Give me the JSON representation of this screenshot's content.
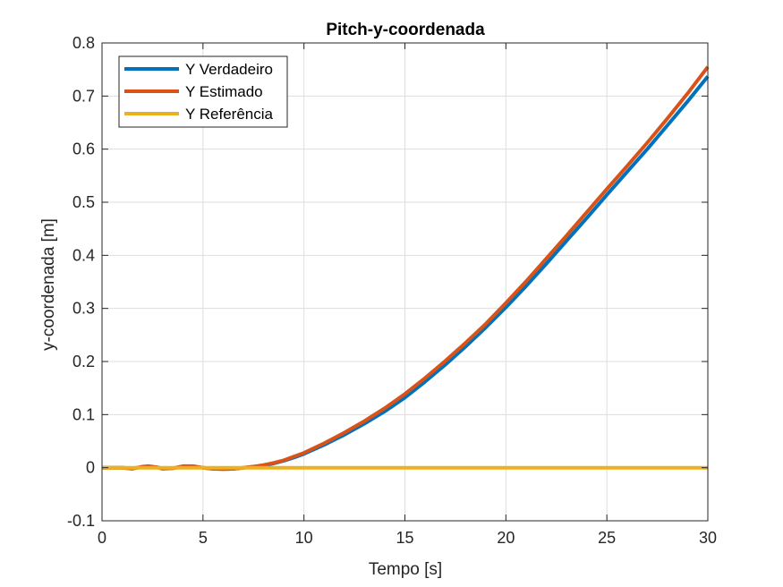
{
  "chart_data": {
    "type": "line",
    "title": "Pitch-y-coordenada",
    "xlabel": "Tempo [s]",
    "ylabel": "y-coordenada [m]",
    "xlim": [
      0,
      30
    ],
    "ylim": [
      -0.1,
      0.8
    ],
    "xticks": [
      0,
      5,
      10,
      15,
      20,
      25,
      30
    ],
    "xtick_labels": [
      "0",
      "5",
      "10",
      "15",
      "20",
      "25",
      "30"
    ],
    "yticks": [
      -0.1,
      0,
      0.1,
      0.2,
      0.3,
      0.4,
      0.5,
      0.6,
      0.7,
      0.8
    ],
    "ytick_labels": [
      "-0.1",
      "0",
      "0.1",
      "0.2",
      "0.3",
      "0.4",
      "0.5",
      "0.6",
      "0.7",
      "0.8"
    ],
    "grid": true,
    "legend_position": "top-left",
    "series": [
      {
        "name": "Y Verdadeiro",
        "color": "#0072BD",
        "x": [
          0,
          1,
          1.5,
          2,
          2.3,
          2.7,
          3,
          3.5,
          4,
          4.5,
          5,
          5.5,
          6,
          6.5,
          7,
          7.5,
          8,
          8.5,
          9,
          9.5,
          10,
          11,
          12,
          13,
          14,
          15,
          16,
          17,
          18,
          19,
          20,
          21,
          22,
          23,
          24,
          25,
          26,
          27,
          28,
          29,
          30
        ],
        "y": [
          0,
          0,
          -0.001,
          0.001,
          0.002,
          0.001,
          -0.001,
          -0.001,
          0.002,
          0.002,
          0.0,
          -0.002,
          -0.002,
          -0.002,
          0.0,
          0.002,
          0.004,
          0.008,
          0.013,
          0.019,
          0.026,
          0.043,
          0.062,
          0.083,
          0.106,
          0.132,
          0.162,
          0.194,
          0.228,
          0.264,
          0.302,
          0.342,
          0.384,
          0.427,
          0.47,
          0.514,
          0.557,
          0.6,
          0.645,
          0.69,
          0.737
        ]
      },
      {
        "name": "Y Estimado",
        "color": "#D95319",
        "x": [
          0,
          1,
          1.5,
          2,
          2.3,
          2.7,
          3,
          3.5,
          4,
          4.5,
          5,
          5.5,
          6,
          6.5,
          7,
          7.5,
          8,
          8.5,
          9,
          9.5,
          10,
          11,
          12,
          13,
          14,
          15,
          16,
          17,
          18,
          19,
          20,
          21,
          22,
          23,
          24,
          25,
          26,
          27,
          28,
          29,
          30
        ],
        "y": [
          0,
          0,
          -0.002,
          0.002,
          0.003,
          0.001,
          -0.002,
          -0.001,
          0.003,
          0.003,
          0.0,
          -0.002,
          -0.003,
          -0.002,
          0.0,
          0.002,
          0.005,
          0.009,
          0.014,
          0.021,
          0.028,
          0.046,
          0.066,
          0.088,
          0.112,
          0.139,
          0.169,
          0.201,
          0.235,
          0.271,
          0.31,
          0.351,
          0.394,
          0.437,
          0.481,
          0.525,
          0.568,
          0.612,
          0.658,
          0.705,
          0.755
        ]
      },
      {
        "name": "Y Referência",
        "color": "#EDB120",
        "x": [
          0,
          30
        ],
        "y": [
          0,
          0
        ]
      }
    ]
  }
}
